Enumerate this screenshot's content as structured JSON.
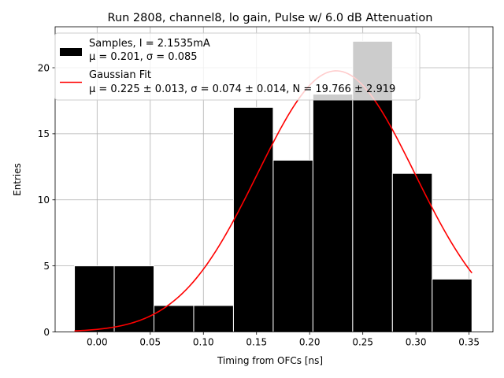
{
  "chart_data": {
    "type": "bar",
    "title": "Run 2808, channel8, lo gain, Pulse w/ 6.0 dB Attenuation",
    "xlabel": "Timing from OFCs [ns]",
    "ylabel": "Entries",
    "xlim": [
      -0.0395,
      0.3725
    ],
    "ylim": [
      0,
      23.1
    ],
    "grid": true,
    "legend_position": "upper-left",
    "x_ticks": [
      0.0,
      0.05,
      0.1,
      0.15,
      0.2,
      0.25,
      0.3,
      0.35
    ],
    "x_tick_labels": [
      "0.00",
      "0.05",
      "0.10",
      "0.15",
      "0.20",
      "0.25",
      "0.30",
      "0.35"
    ],
    "y_ticks": [
      0,
      5,
      10,
      15,
      20
    ],
    "y_tick_labels": [
      "0",
      "5",
      "10",
      "15",
      "20"
    ],
    "bin_edges": [
      -0.0213,
      0.0161,
      0.0535,
      0.0909,
      0.1283,
      0.1657,
      0.2031,
      0.2405,
      0.2779,
      0.3153,
      0.3527
    ],
    "series": [
      {
        "name": "Samples",
        "kind": "histogram",
        "color": "#000000",
        "bins": [
          {
            "left": -0.0213,
            "right": 0.0161,
            "value": 5
          },
          {
            "left": 0.0161,
            "right": 0.0535,
            "value": 5
          },
          {
            "left": 0.0535,
            "right": 0.0909,
            "value": 2
          },
          {
            "left": 0.0909,
            "right": 0.1283,
            "value": 2
          },
          {
            "left": 0.1283,
            "right": 0.1657,
            "value": 17
          },
          {
            "left": 0.1657,
            "right": 0.2031,
            "value": 13
          },
          {
            "left": 0.2031,
            "right": 0.2405,
            "value": 18
          },
          {
            "left": 0.2405,
            "right": 0.2779,
            "value": 22
          },
          {
            "left": 0.2779,
            "right": 0.3153,
            "value": 12
          },
          {
            "left": 0.3153,
            "right": 0.3527,
            "value": 4
          }
        ]
      },
      {
        "name": "Gaussian Fit",
        "kind": "line",
        "color": "#ff0000",
        "mu": 0.225,
        "sigma": 0.074,
        "N": 19.766,
        "x_range": [
          -0.0213,
          0.3527
        ]
      }
    ],
    "legend": [
      {
        "label_line1": "Samples, I = 2.1535mA",
        "label_line2": "μ = 0.201, σ = 0.085"
      },
      {
        "label_line1": "Gaussian Fit",
        "label_line2": "μ = 0.225 ± 0.013, σ = 0.074 ± 0.014, N = 19.766 ± 2.919"
      }
    ]
  }
}
